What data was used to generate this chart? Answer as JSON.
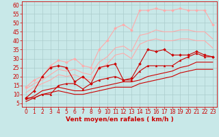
{
  "background_color": "#c8e8e8",
  "grid_color": "#aacccc",
  "xlabel": "Vent moyen/en rafales ( km/h )",
  "ylabel_ticks": [
    5,
    10,
    15,
    20,
    25,
    30,
    35,
    40,
    45,
    50,
    55,
    60
  ],
  "xlim": [
    -0.5,
    23.5
  ],
  "ylim": [
    3,
    62
  ],
  "xticks": [
    0,
    1,
    2,
    3,
    4,
    5,
    6,
    7,
    8,
    9,
    10,
    11,
    12,
    13,
    14,
    15,
    16,
    17,
    18,
    19,
    20,
    21,
    22,
    23
  ],
  "lines": [
    {
      "x": [
        0,
        1,
        2,
        3,
        4,
        5,
        6,
        7,
        8,
        9,
        10,
        11,
        12,
        13,
        14,
        15,
        16,
        17,
        18,
        19,
        20,
        21,
        22,
        23
      ],
      "y": [
        8,
        12,
        20,
        25,
        26,
        25,
        17,
        20,
        16,
        25,
        26,
        27,
        18,
        19,
        27,
        35,
        34,
        35,
        32,
        32,
        32,
        34,
        32,
        31
      ],
      "color": "#cc0000",
      "marker": "D",
      "markersize": 2.0,
      "linewidth": 0.8,
      "zorder": 5
    },
    {
      "x": [
        0,
        1,
        2,
        3,
        4,
        5,
        6,
        7,
        8,
        9,
        10,
        11,
        12,
        13,
        14,
        15,
        16,
        17,
        18,
        19,
        20,
        21,
        22,
        23
      ],
      "y": [
        8,
        8,
        10,
        10,
        15,
        16,
        16,
        13,
        16,
        18,
        19,
        20,
        18,
        18,
        23,
        26,
        26,
        26,
        26,
        29,
        31,
        33,
        31,
        31
      ],
      "color": "#cc0000",
      "marker": "^",
      "markersize": 2.0,
      "linewidth": 0.8,
      "zorder": 5
    },
    {
      "x": [
        0,
        1,
        2,
        3,
        4,
        5,
        6,
        7,
        8,
        9,
        10,
        11,
        12,
        13,
        14,
        15,
        16,
        17,
        18,
        19,
        20,
        21,
        22,
        23
      ],
      "y": [
        7,
        9,
        12,
        13,
        14,
        13,
        12,
        12,
        13,
        14,
        15,
        16,
        17,
        17,
        18,
        20,
        21,
        22,
        23,
        25,
        26,
        28,
        28,
        28
      ],
      "color": "#cc0000",
      "marker": null,
      "markersize": 0,
      "linewidth": 0.8,
      "zorder": 4
    },
    {
      "x": [
        0,
        1,
        2,
        3,
        4,
        5,
        6,
        7,
        8,
        9,
        10,
        11,
        12,
        13,
        14,
        15,
        16,
        17,
        18,
        19,
        20,
        21,
        22,
        23
      ],
      "y": [
        6,
        8,
        10,
        11,
        12,
        11,
        10,
        10,
        11,
        12,
        13,
        14,
        14,
        14,
        16,
        17,
        18,
        19,
        20,
        22,
        23,
        24,
        24,
        24
      ],
      "color": "#cc0000",
      "marker": null,
      "markersize": 0,
      "linewidth": 0.8,
      "zorder": 4
    },
    {
      "x": [
        0,
        1,
        2,
        3,
        4,
        5,
        6,
        7,
        8,
        9,
        10,
        11,
        12,
        13,
        14,
        15,
        16,
        17,
        18,
        19,
        20,
        21,
        22,
        23
      ],
      "y": [
        14,
        18,
        20,
        26,
        29,
        28,
        30,
        26,
        25,
        35,
        40,
        47,
        49,
        46,
        57,
        57,
        58,
        57,
        57,
        58,
        57,
        57,
        57,
        49
      ],
      "color": "#ffaaaa",
      "marker": "D",
      "markersize": 2.0,
      "linewidth": 0.8,
      "zorder": 3
    },
    {
      "x": [
        0,
        1,
        2,
        3,
        4,
        5,
        6,
        7,
        8,
        9,
        10,
        11,
        12,
        13,
        14,
        15,
        16,
        17,
        18,
        19,
        20,
        21,
        22,
        23
      ],
      "y": [
        13,
        16,
        18,
        21,
        24,
        23,
        24,
        22,
        21,
        28,
        31,
        36,
        37,
        34,
        43,
        44,
        46,
        45,
        45,
        46,
        46,
        45,
        45,
        41
      ],
      "color": "#ffaaaa",
      "marker": null,
      "markersize": 0,
      "linewidth": 0.8,
      "zorder": 3
    },
    {
      "x": [
        0,
        1,
        2,
        3,
        4,
        5,
        6,
        7,
        8,
        9,
        10,
        11,
        12,
        13,
        14,
        15,
        16,
        17,
        18,
        19,
        20,
        21,
        22,
        23
      ],
      "y": [
        11,
        14,
        16,
        18,
        21,
        20,
        21,
        19,
        18,
        24,
        27,
        32,
        33,
        30,
        38,
        40,
        41,
        40,
        40,
        41,
        41,
        40,
        40,
        36
      ],
      "color": "#ffaaaa",
      "marker": null,
      "markersize": 0,
      "linewidth": 0.8,
      "zorder": 3
    }
  ],
  "xlabel_color": "#cc0000",
  "tick_color": "#cc0000",
  "xlabel_fontsize": 6.5,
  "tick_fontsize": 5.5
}
